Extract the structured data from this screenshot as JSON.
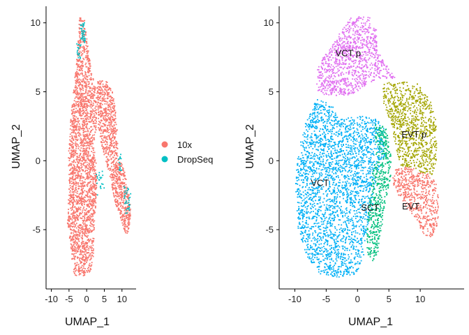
{
  "chart_data": [
    {
      "type": "scatter",
      "xlabel": "UMAP_1",
      "ylabel": "UMAP_2",
      "xlim": [
        -11.5,
        14
      ],
      "ylim": [
        -9.3,
        11.2
      ],
      "xticks": [
        -10,
        -5,
        0,
        5,
        10
      ],
      "yticks": [
        -5,
        0,
        5,
        10
      ],
      "xtick_labels": [
        "-10",
        "-5",
        "0",
        "5",
        "10"
      ],
      "ytick_labels": [
        "-5",
        "0",
        "5",
        "10"
      ],
      "color_by": "technology",
      "series": [
        {
          "name": "10x",
          "color": "#F8766D",
          "regions": [
            {
              "poly": [
                [
                  -2.0,
                  10.4
                ],
                [
                  -0.5,
                  10.3
                ],
                [
                  0.2,
                  8.5
                ],
                [
                  1.5,
                  6.5
                ],
                [
                  2.8,
                  5.0
                ],
                [
                  2.8,
                  2.5
                ],
                [
                  2.0,
                  1.0
                ],
                [
                  2.8,
                  0.0
                ],
                [
                  2.8,
                  -2.5
                ],
                [
                  2.2,
                  -4.5
                ],
                [
                  2.0,
                  -7.0
                ],
                [
                  1.0,
                  -8.2
                ],
                [
                  -1.5,
                  -8.4
                ],
                [
                  -3.5,
                  -8.3
                ],
                [
                  -4.0,
                  -7.5
                ],
                [
                  -4.5,
                  -6.5
                ],
                [
                  -5.5,
                  -4.5
                ],
                [
                  -5.0,
                  -2.0
                ],
                [
                  -5.2,
                  0.0
                ],
                [
                  -4.8,
                  2.0
                ],
                [
                  -4.0,
                  4.5
                ],
                [
                  -3.5,
                  5.5
                ],
                [
                  -2.8,
                  7.5
                ]
              ],
              "count": 2300
            },
            {
              "poly": [
                [
                  2.8,
                  5.0
                ],
                [
                  3.0,
                  5.8
                ],
                [
                  5.5,
                  5.8
                ],
                [
                  7.5,
                  5.0
                ],
                [
                  8.5,
                  3.0
                ],
                [
                  9.0,
                  0.5
                ],
                [
                  11.0,
                  -1.0
                ],
                [
                  12.0,
                  -2.5
                ],
                [
                  12.5,
                  -3.5
                ],
                [
                  12.3,
                  -4.5
                ],
                [
                  11.5,
                  -5.5
                ],
                [
                  10.5,
                  -5.0
                ],
                [
                  9.5,
                  -4.0
                ],
                [
                  8.0,
                  -3.0
                ],
                [
                  6.5,
                  -1.0
                ],
                [
                  4.5,
                  0.8
                ],
                [
                  3.2,
                  2.5
                ]
              ],
              "count": 1000
            }
          ]
        },
        {
          "name": "DropSeq",
          "color": "#00BFC4",
          "regions": [
            {
              "poly": [
                [
                  -1.8,
                  10.0
                ],
                [
                  -0.6,
                  10.0
                ],
                [
                  -0.4,
                  8.5
                ],
                [
                  -1.7,
                  8.8
                ]
              ],
              "count": 40
            },
            {
              "poly": [
                [
                  -2.8,
                  8.6
                ],
                [
                  -1.6,
                  8.6
                ],
                [
                  -1.8,
                  7.3
                ],
                [
                  -2.9,
                  7.6
                ]
              ],
              "count": 20
            },
            {
              "poly": [
                [
                  2.5,
                  -1.0
                ],
                [
                  4.5,
                  -0.5
                ],
                [
                  5.0,
                  -2.0
                ],
                [
                  3.0,
                  -2.5
                ]
              ],
              "count": 20
            },
            {
              "poly": [
                [
                  9.0,
                  0.5
                ],
                [
                  10.0,
                  0.5
                ],
                [
                  10.2,
                  -1.0
                ],
                [
                  9.1,
                  -0.8
                ]
              ],
              "count": 15
            },
            {
              "poly": [
                [
                  10.5,
                  -1.8
                ],
                [
                  12.5,
                  -2.0
                ],
                [
                  12.5,
                  -4.0
                ],
                [
                  10.8,
                  -3.8
                ]
              ],
              "count": 35
            }
          ]
        }
      ],
      "legend": {
        "placement": "right",
        "entries": [
          "10x",
          "DropSeq"
        ]
      }
    },
    {
      "type": "scatter",
      "xlabel": "UMAP_1",
      "ylabel": "UMAP_2",
      "xlim": [
        -12.5,
        17
      ],
      "ylim": [
        -9.3,
        11.2
      ],
      "xticks": [
        -10,
        -5,
        0,
        5,
        10
      ],
      "yticks": [
        -5,
        0,
        5,
        10
      ],
      "xtick_labels": [
        "-10",
        "-5",
        "0",
        "5",
        "10"
      ],
      "ytick_labels": [
        "-5",
        "0",
        "5",
        "10"
      ],
      "color_by": "cluster",
      "series": [
        {
          "name": "VCT p",
          "color": "#E06EF0",
          "regions": [
            {
              "poly": [
                [
                  -0.8,
                  10.5
                ],
                [
                  2.0,
                  10.4
                ],
                [
                  3.0,
                  9.5
                ],
                [
                  3.2,
                  8.0
                ],
                [
                  4.5,
                  7.0
                ],
                [
                  6.0,
                  6.0
                ],
                [
                  2.5,
                  5.8
                ],
                [
                  0.5,
                  5.2
                ],
                [
                  -1.0,
                  4.8
                ],
                [
                  -3.0,
                  4.7
                ],
                [
                  -5.5,
                  4.8
                ],
                [
                  -6.5,
                  5.0
                ],
                [
                  -6.5,
                  6.5
                ],
                [
                  -5.5,
                  7.5
                ],
                [
                  -4.5,
                  8.0
                ],
                [
                  -3.2,
                  9.0
                ]
              ],
              "count": 1000
            }
          ]
        },
        {
          "name": "EVT p",
          "color": "#A3A500",
          "regions": [
            {
              "poly": [
                [
                  4.0,
                  5.6
                ],
                [
                  6.5,
                  5.8
                ],
                [
                  9.5,
                  5.6
                ],
                [
                  11.5,
                  4.5
                ],
                [
                  12.5,
                  3.0
                ],
                [
                  12.8,
                  0.5
                ],
                [
                  12.0,
                  -1.0
                ],
                [
                  10.5,
                  -1.0
                ],
                [
                  9.0,
                  -0.5
                ],
                [
                  7.0,
                  -0.5
                ],
                [
                  6.0,
                  1.0
                ],
                [
                  5.5,
                  2.5
                ],
                [
                  4.2,
                  4.0
                ]
              ],
              "count": 900
            }
          ]
        },
        {
          "name": "VCT",
          "color": "#00B0F6",
          "regions": [
            {
              "poly": [
                [
                  -6.5,
                  4.5
                ],
                [
                  -4.0,
                  4.0
                ],
                [
                  -3.0,
                  3.0
                ],
                [
                  -1.0,
                  3.2
                ],
                [
                  1.0,
                  3.3
                ],
                [
                  3.0,
                  3.0
                ],
                [
                  4.2,
                  2.5
                ],
                [
                  4.5,
                  0.5
                ],
                [
                  3.0,
                  -1.0
                ],
                [
                  2.5,
                  -3.0
                ],
                [
                  1.5,
                  -5.0
                ],
                [
                  1.0,
                  -6.8
                ],
                [
                  0.0,
                  -8.2
                ],
                [
                  -3.0,
                  -8.5
                ],
                [
                  -6.0,
                  -8.2
                ],
                [
                  -8.0,
                  -7.0
                ],
                [
                  -9.5,
                  -5.0
                ],
                [
                  -10.0,
                  -2.0
                ],
                [
                  -9.5,
                  0.5
                ],
                [
                  -8.5,
                  2.5
                ]
              ],
              "count": 2600
            }
          ]
        },
        {
          "name": "SCT",
          "color": "#00BF7D",
          "regions": [
            {
              "poly": [
                [
                  2.8,
                  2.6
                ],
                [
                  4.5,
                  2.5
                ],
                [
                  5.5,
                  0.0
                ],
                [
                  5.2,
                  -1.5
                ],
                [
                  4.5,
                  -3.0
                ],
                [
                  3.8,
                  -5.0
                ],
                [
                  3.5,
                  -6.5
                ],
                [
                  2.5,
                  -7.3
                ],
                [
                  1.5,
                  -6.8
                ],
                [
                  1.5,
                  -4.5
                ],
                [
                  2.0,
                  -2.5
                ],
                [
                  2.5,
                  -0.5
                ],
                [
                  3.0,
                  0.5
                ],
                [
                  2.8,
                  1.5
                ]
              ],
              "count": 500
            }
          ]
        },
        {
          "name": "EVT",
          "color": "#F8766D",
          "regions": [
            {
              "poly": [
                [
                  6.0,
                  -0.5
                ],
                [
                  9.0,
                  -0.5
                ],
                [
                  11.5,
                  -1.0
                ],
                [
                  12.5,
                  -1.5
                ],
                [
                  13.0,
                  -3.0
                ],
                [
                  12.8,
                  -4.5
                ],
                [
                  12.0,
                  -5.5
                ],
                [
                  11.0,
                  -5.6
                ],
                [
                  9.5,
                  -4.5
                ],
                [
                  8.0,
                  -3.5
                ],
                [
                  6.5,
                  -2.5
                ],
                [
                  5.5,
                  -1.5
                ]
              ],
              "count": 550
            }
          ]
        }
      ],
      "annotations": [
        {
          "text": "VCT p",
          "x": -1.5,
          "y": 7.8
        },
        {
          "text": "EVT p",
          "x": 9.0,
          "y": 1.9
        },
        {
          "text": "VCT",
          "x": -6.0,
          "y": -1.6
        },
        {
          "text": "SCT",
          "x": 2.0,
          "y": -3.4
        },
        {
          "text": "EVT",
          "x": 8.5,
          "y": -3.3
        }
      ]
    }
  ]
}
